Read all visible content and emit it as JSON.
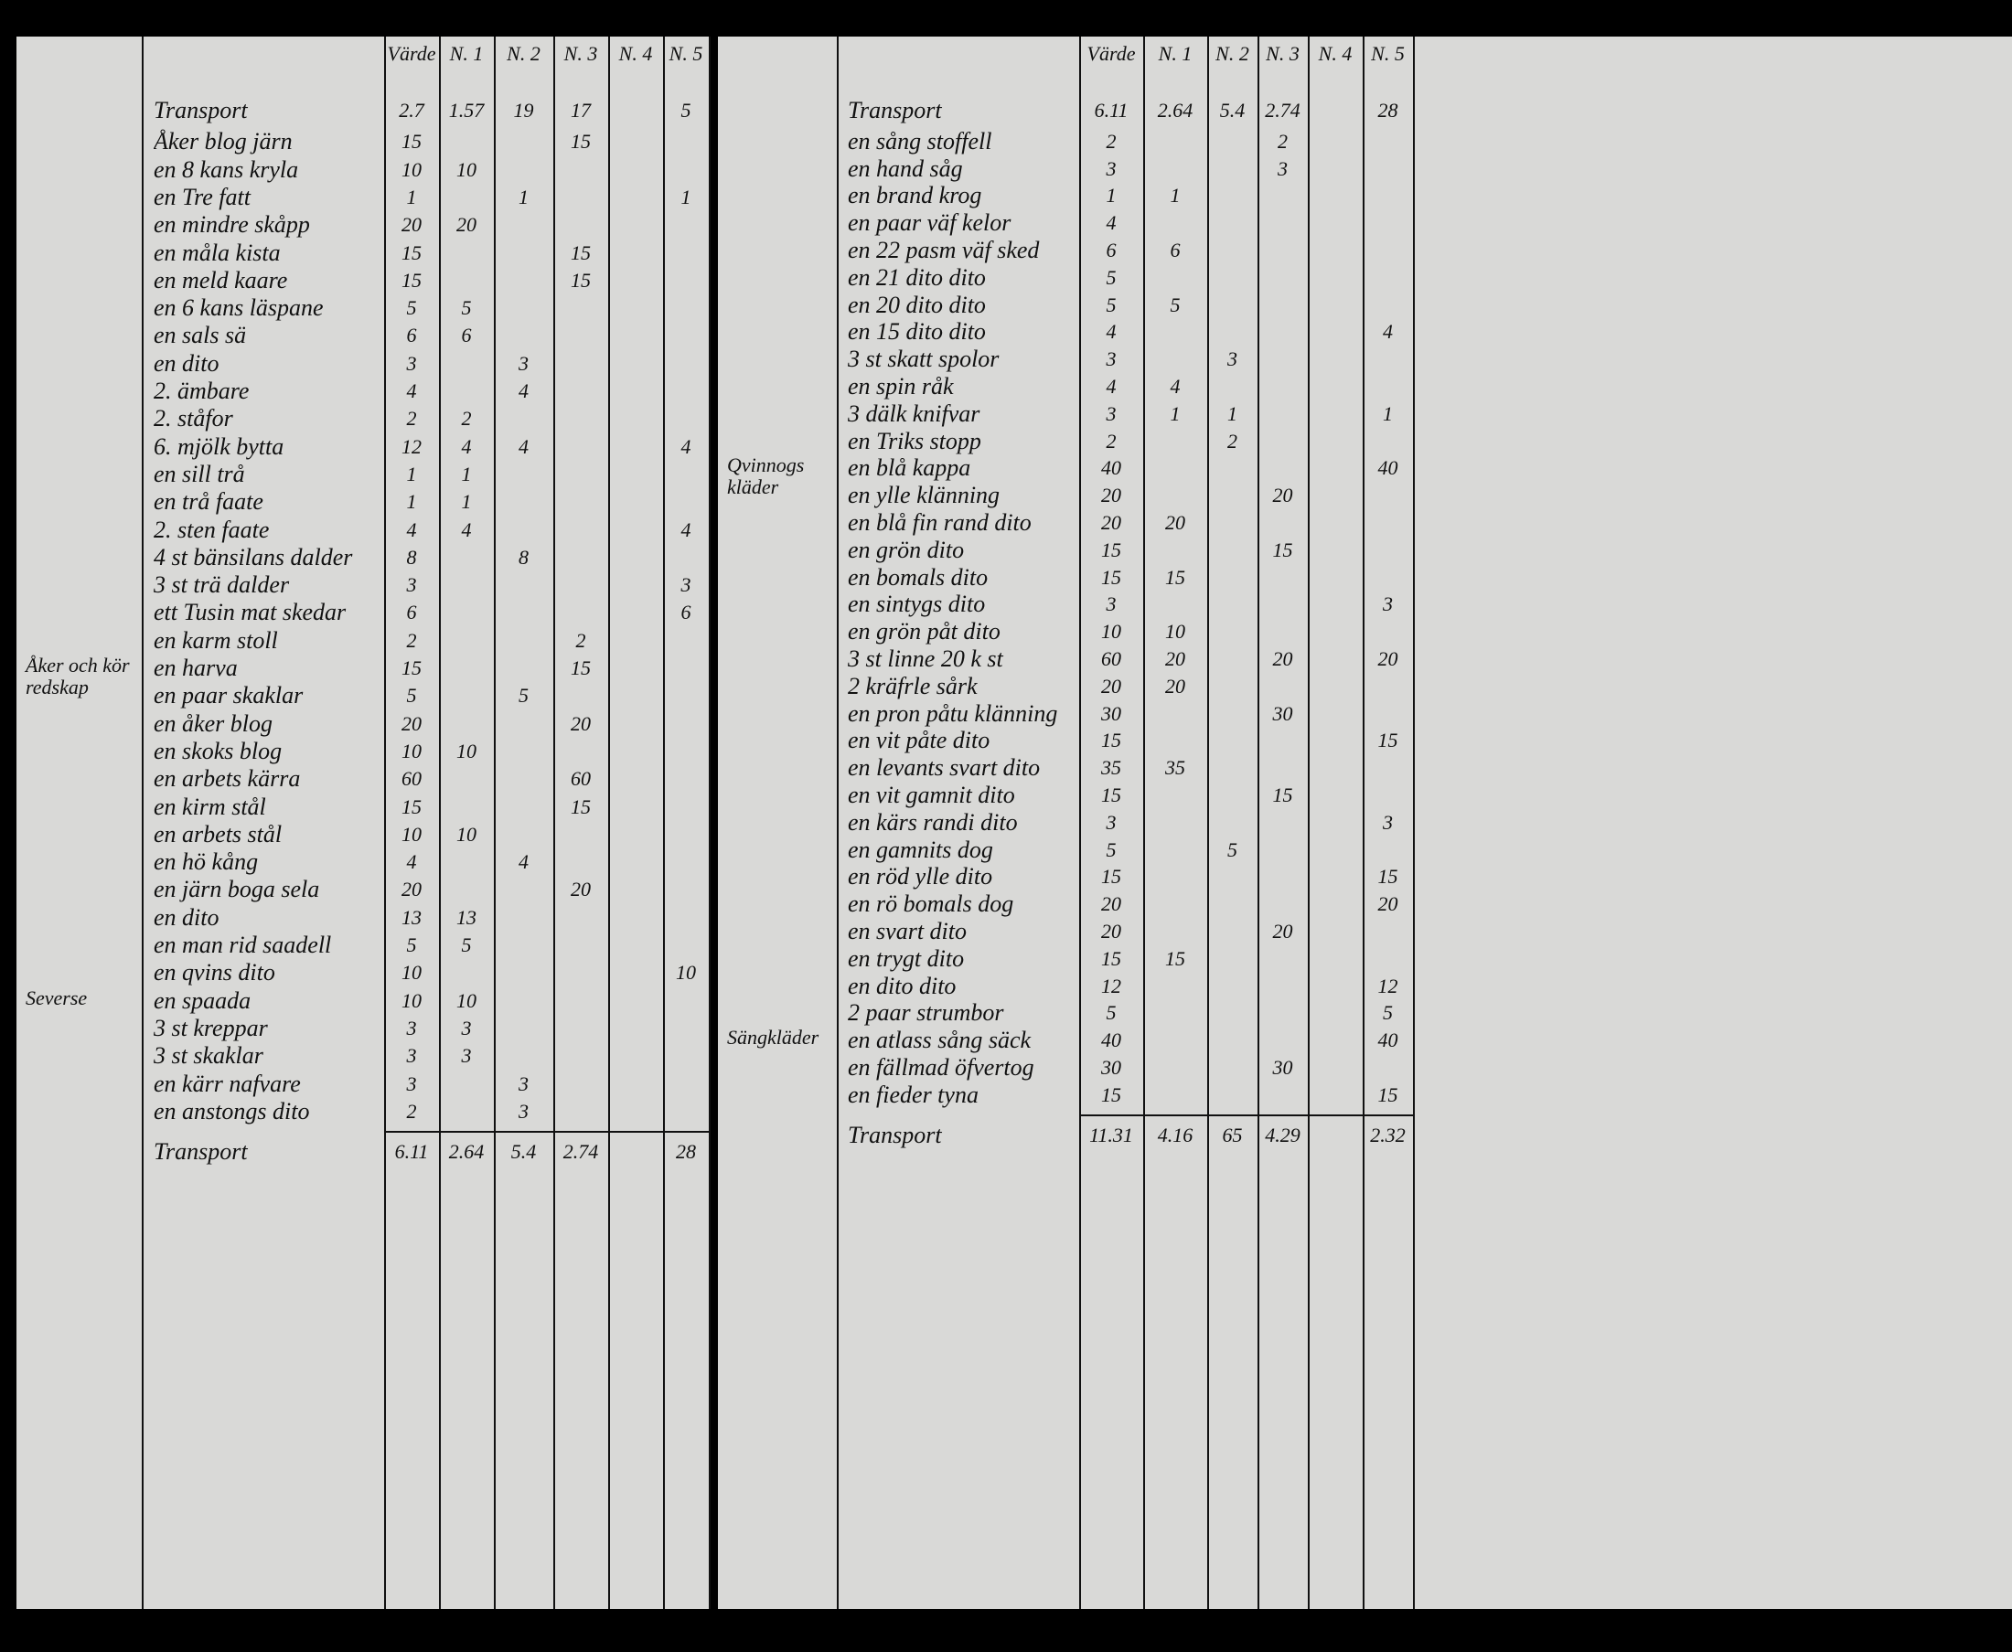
{
  "pages": [
    {
      "column_headers": {
        "value": "Värde",
        "n1": "N. 1",
        "n2": "N. 2",
        "n3": "N. 3",
        "n4": "N. 4",
        "n5": "N. 5"
      },
      "header": {
        "item": "Transport",
        "cells": {
          "value": "2.7",
          "n1": "1.57",
          "n2": "19",
          "n3": "17",
          "n5": "5"
        }
      },
      "margin_notes": [
        {
          "text": "Åker och kör redskap",
          "row": 20
        },
        {
          "text": "Severse",
          "row": 32
        }
      ],
      "rows": [
        {
          "item": "Åker blog järn",
          "cells": {
            "value": "15",
            "n3": "15"
          }
        },
        {
          "item": "en 8 kans kryla",
          "cells": {
            "value": "10",
            "n1": "10"
          }
        },
        {
          "item": "en Tre fatt",
          "cells": {
            "value": "1",
            "n2": "1",
            "n5": "1"
          }
        },
        {
          "item": "en mindre skåpp",
          "cells": {
            "value": "20",
            "n1": "20"
          }
        },
        {
          "item": "en måla kista",
          "cells": {
            "value": "15",
            "n3": "15"
          }
        },
        {
          "item": "en meld kaare",
          "cells": {
            "value": "15",
            "n3": "15"
          }
        },
        {
          "item": "en 6 kans läspane",
          "cells": {
            "value": "5",
            "n1": "5"
          }
        },
        {
          "item": "en sals sä",
          "cells": {
            "value": "6",
            "n1": "6"
          }
        },
        {
          "item": "en dito",
          "cells": {
            "value": "3",
            "n2": "3"
          }
        },
        {
          "item": "2. ämbare",
          "cells": {
            "value": "4",
            "n2": "4"
          }
        },
        {
          "item": "2. ståfor",
          "cells": {
            "value": "2",
            "n1": "2"
          }
        },
        {
          "item": "6. mjölk bytta",
          "cells": {
            "value": "12",
            "n1": "4",
            "n2": "4",
            "n5": "4"
          }
        },
        {
          "item": "en sill trå",
          "cells": {
            "value": "1",
            "n1": "1"
          }
        },
        {
          "item": "en trå faate",
          "cells": {
            "value": "1",
            "n1": "1"
          }
        },
        {
          "item": "2. sten faate",
          "cells": {
            "value": "4",
            "n1": "4",
            "n5": "4"
          }
        },
        {
          "item": "4 st bänsilans dalder",
          "cells": {
            "value": "8",
            "n2": "8"
          }
        },
        {
          "item": "3 st trä dalder",
          "cells": {
            "value": "3",
            "n5": "3"
          }
        },
        {
          "item": "ett Tusin mat skedar",
          "cells": {
            "value": "6",
            "n5": "6"
          }
        },
        {
          "item": "en karm stoll",
          "cells": {
            "value": "2",
            "n3": "2"
          }
        },
        {
          "item": "en harva",
          "cells": {
            "value": "15",
            "n3": "15"
          }
        },
        {
          "item": "en paar skaklar",
          "cells": {
            "value": "5",
            "n2": "5"
          }
        },
        {
          "item": "en åker blog",
          "cells": {
            "value": "20",
            "n3": "20"
          }
        },
        {
          "item": "en skoks blog",
          "cells": {
            "value": "10",
            "n1": "10"
          }
        },
        {
          "item": "en arbets kärra",
          "cells": {
            "value": "60",
            "n3": "60"
          }
        },
        {
          "item": "en kirm stål",
          "cells": {
            "value": "15",
            "n3": "15"
          }
        },
        {
          "item": "en arbets stål",
          "cells": {
            "value": "10",
            "n1": "10"
          }
        },
        {
          "item": "en hö kång",
          "cells": {
            "value": "4",
            "n2": "4"
          }
        },
        {
          "item": "en järn boga sela",
          "cells": {
            "value": "20",
            "n3": "20"
          }
        },
        {
          "item": "en dito",
          "cells": {
            "value": "13",
            "n1": "13"
          }
        },
        {
          "item": "en man rid saadell",
          "cells": {
            "value": "5",
            "n1": "5"
          }
        },
        {
          "item": "en qvins dito",
          "cells": {
            "value": "10",
            "n5": "10"
          }
        },
        {
          "item": "en spaada",
          "cells": {
            "value": "10",
            "n1": "10"
          }
        },
        {
          "item": "3 st kreppar",
          "cells": {
            "value": "3",
            "n1": "3"
          }
        },
        {
          "item": "3 st skaklar",
          "cells": {
            "value": "3",
            "n1": "3"
          }
        },
        {
          "item": "en kärr nafvare",
          "cells": {
            "value": "3",
            "n2": "3"
          }
        },
        {
          "item": "en anstongs dito",
          "cells": {
            "value": "2",
            "n2": "3"
          }
        }
      ],
      "footer": {
        "item": "Transport",
        "cells": {
          "value": "6.11",
          "n1": "2.64",
          "n2": "5.4",
          "n3": "2.74",
          "n5": "28"
        }
      }
    },
    {
      "column_headers": {
        "value": "Värde",
        "n1": "N. 1",
        "n2": "N. 2",
        "n3": "N. 3",
        "n4": "N. 4",
        "n5": "N. 5"
      },
      "header": {
        "item": "Transport",
        "cells": {
          "value": "6.11",
          "n1": "2.64",
          "n2": "5.4",
          "n3": "2.74",
          "n5": "28"
        }
      },
      "margin_notes": [
        {
          "text": "Qvinnogs kläder",
          "row": 13
        },
        {
          "text": "Sängkläder",
          "row": 34
        }
      ],
      "rows": [
        {
          "item": "en sång stoffell",
          "cells": {
            "value": "2",
            "n3": "2"
          }
        },
        {
          "item": "en hand såg",
          "cells": {
            "value": "3",
            "n3": "3"
          }
        },
        {
          "item": "en brand krog",
          "cells": {
            "value": "1",
            "n1": "1"
          }
        },
        {
          "item": "en paar väf kelor",
          "cells": {
            "value": "4"
          }
        },
        {
          "item": "en 22 pasm väf sked",
          "cells": {
            "value": "6",
            "n1": "6"
          }
        },
        {
          "item": "en 21 dito dito",
          "cells": {
            "value": "5"
          }
        },
        {
          "item": "en 20 dito dito",
          "cells": {
            "value": "5",
            "n1": "5"
          }
        },
        {
          "item": "en 15 dito dito",
          "cells": {
            "value": "4",
            "n5": "4"
          }
        },
        {
          "item": "3 st skatt spolor",
          "cells": {
            "value": "3",
            "n2": "3"
          }
        },
        {
          "item": "en spin råk",
          "cells": {
            "value": "4",
            "n1": "4"
          }
        },
        {
          "item": "3 dälk knifvar",
          "cells": {
            "value": "3",
            "n1": "1",
            "n2": "1",
            "n5": "1"
          }
        },
        {
          "item": "en Triks stopp",
          "cells": {
            "value": "2",
            "n2": "2"
          }
        },
        {
          "item": "en blå kappa",
          "cells": {
            "value": "40",
            "n5": "40"
          }
        },
        {
          "item": "en ylle klänning",
          "cells": {
            "value": "20",
            "n3": "20"
          }
        },
        {
          "item": "en blå fin rand dito",
          "cells": {
            "value": "20",
            "n1": "20"
          }
        },
        {
          "item": "en grön dito",
          "cells": {
            "value": "15",
            "n3": "15"
          }
        },
        {
          "item": "en bomals dito",
          "cells": {
            "value": "15",
            "n1": "15"
          }
        },
        {
          "item": "en sintygs dito",
          "cells": {
            "value": "3",
            "n5": "3"
          }
        },
        {
          "item": "en grön påt dito",
          "cells": {
            "value": "10",
            "n1": "10"
          }
        },
        {
          "item": "3 st linne 20 k st",
          "cells": {
            "value": "60",
            "n1": "20",
            "n3": "20",
            "n5": "20"
          }
        },
        {
          "item": "2 kräfrle sårk",
          "cells": {
            "value": "20",
            "n1": "20"
          }
        },
        {
          "item": "en pron påtu klänning",
          "cells": {
            "value": "30",
            "n3": "30"
          }
        },
        {
          "item": "en vit påte dito",
          "cells": {
            "value": "15",
            "n5": "15"
          }
        },
        {
          "item": "en levants svart dito",
          "cells": {
            "value": "35",
            "n1": "35"
          }
        },
        {
          "item": "en vit gamnit dito",
          "cells": {
            "value": "15",
            "n3": "15"
          }
        },
        {
          "item": "en kärs randi dito",
          "cells": {
            "value": "3",
            "n5": "3"
          }
        },
        {
          "item": "en gamnits dog",
          "cells": {
            "value": "5",
            "n2": "5"
          }
        },
        {
          "item": "en röd ylle dito",
          "cells": {
            "value": "15",
            "n5": "15"
          }
        },
        {
          "item": "en rö bomals dog",
          "cells": {
            "value": "20",
            "n5": "20"
          }
        },
        {
          "item": "en svart dito",
          "cells": {
            "value": "20",
            "n3": "20"
          }
        },
        {
          "item": "en trygt dito",
          "cells": {
            "value": "15",
            "n1": "15"
          }
        },
        {
          "item": "en dito dito",
          "cells": {
            "value": "12",
            "n5": "12"
          }
        },
        {
          "item": "2 paar strumbor",
          "cells": {
            "value": "5",
            "n5": "5"
          }
        },
        {
          "item": "en atlass sång säck",
          "cells": {
            "value": "40",
            "n5": "40"
          }
        },
        {
          "item": "en fällmad öfvertog",
          "cells": {
            "value": "30",
            "n3": "30"
          }
        },
        {
          "item": "en fieder tyna",
          "cells": {
            "value": "15",
            "n5": "15"
          }
        }
      ],
      "footer": {
        "item": "Transport",
        "cells": {
          "value": "11.31",
          "n1": "4.16",
          "n2": "65",
          "n3": "4.29",
          "n5": "2.32"
        }
      }
    }
  ]
}
